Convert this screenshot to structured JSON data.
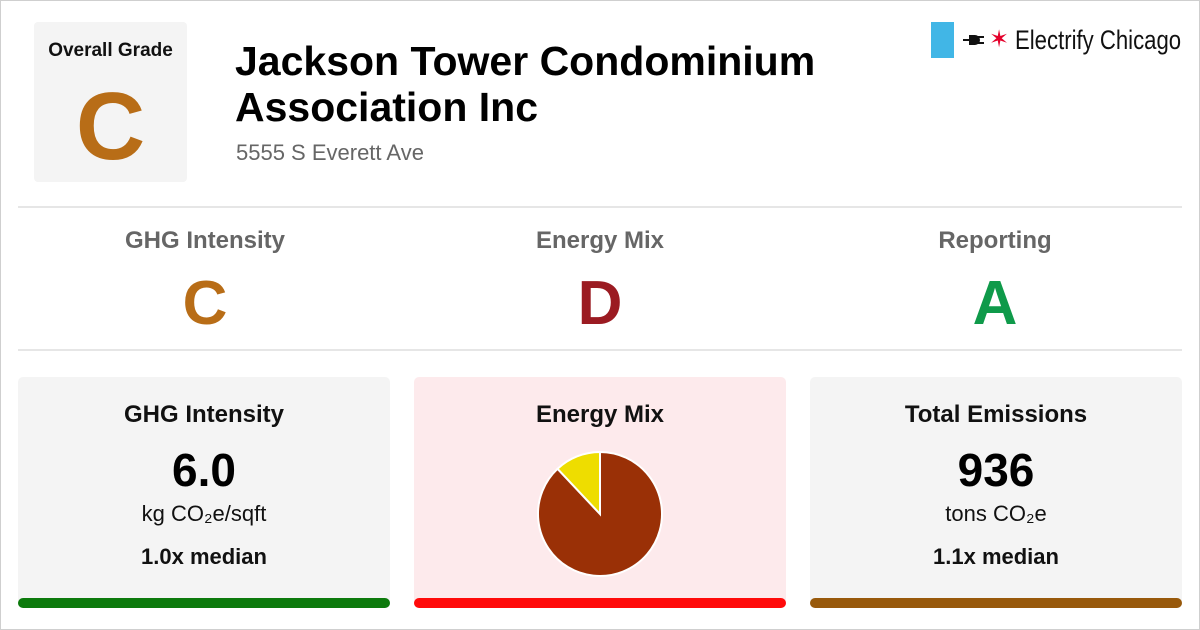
{
  "overall": {
    "label": "Overall Grade",
    "grade": "C",
    "grade_color": "#b86d17"
  },
  "building": {
    "name": "Jackson Tower Condominium Association Inc",
    "address": "5555 S Everett Ave"
  },
  "brand": {
    "name": "Electrify Chicago",
    "flag_color": "#41b6e6",
    "star_color": "#e4002b"
  },
  "grades": [
    {
      "label": "GHG Intensity",
      "grade": "C",
      "color": "#b86d17"
    },
    {
      "label": "Energy Mix",
      "grade": "D",
      "color": "#9b1b22"
    },
    {
      "label": "Reporting",
      "grade": "A",
      "color": "#0f9a4a"
    }
  ],
  "cards": {
    "ghg": {
      "title": "GHG Intensity",
      "value": "6.0",
      "unit": "kg CO₂e/sqft",
      "median": "1.0x median",
      "bg": "#f4f4f4",
      "bar_color": "#0c7a0c"
    },
    "mix": {
      "title": "Energy Mix",
      "bg": "#fdeaec",
      "bar_color": "#ff0a0a"
    },
    "emissions": {
      "title": "Total Emissions",
      "value": "936",
      "unit": "tons CO₂e",
      "median": "1.1x median",
      "bg": "#f4f4f4",
      "bar_color": "#98590b"
    }
  },
  "chart_data": {
    "type": "pie",
    "slices": [
      {
        "value": 0.88,
        "color": "#9a3006"
      },
      {
        "value": 0.12,
        "color": "#eedd00"
      }
    ]
  }
}
